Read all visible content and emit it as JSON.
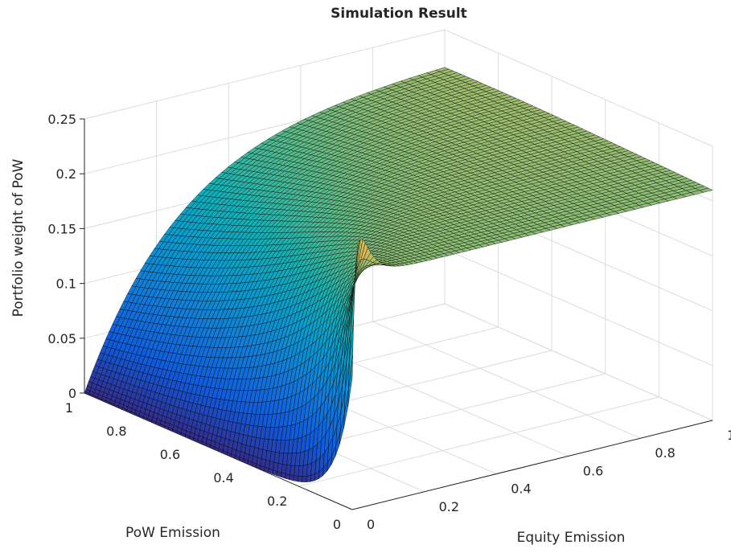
{
  "chart_data": {
    "type": "surface",
    "title": "Simulation Result",
    "xlabel": "Equity Emission",
    "ylabel": "PoW Emission",
    "zlabel": "Portfolio weight of PoW",
    "xlim": [
      0,
      1
    ],
    "ylim": [
      0,
      1
    ],
    "zlim": [
      0,
      0.25
    ],
    "x_ticks": [
      "0",
      "0.2",
      "0.4",
      "0.6",
      "0.8",
      "1"
    ],
    "y_ticks": [
      "0",
      "0.2",
      "0.4",
      "0.6",
      "0.8",
      "1"
    ],
    "z_ticks": [
      "0",
      "0.05",
      "0.1",
      "0.15",
      "0.2",
      "0.25"
    ],
    "grid": true,
    "colormap": "parula",
    "sample_points": [
      {
        "x": 0,
        "y": 1,
        "z": 0.0
      },
      {
        "x": 0,
        "y": 0,
        "z": 0.0
      },
      {
        "x": 0.01,
        "y": 0.5,
        "z": 0.12
      },
      {
        "x": 0,
        "y": 0.02,
        "z": 0.14
      },
      {
        "x": 1,
        "y": 1,
        "z": 0.21
      },
      {
        "x": 1,
        "y": 0,
        "z": 0.22
      }
    ]
  }
}
